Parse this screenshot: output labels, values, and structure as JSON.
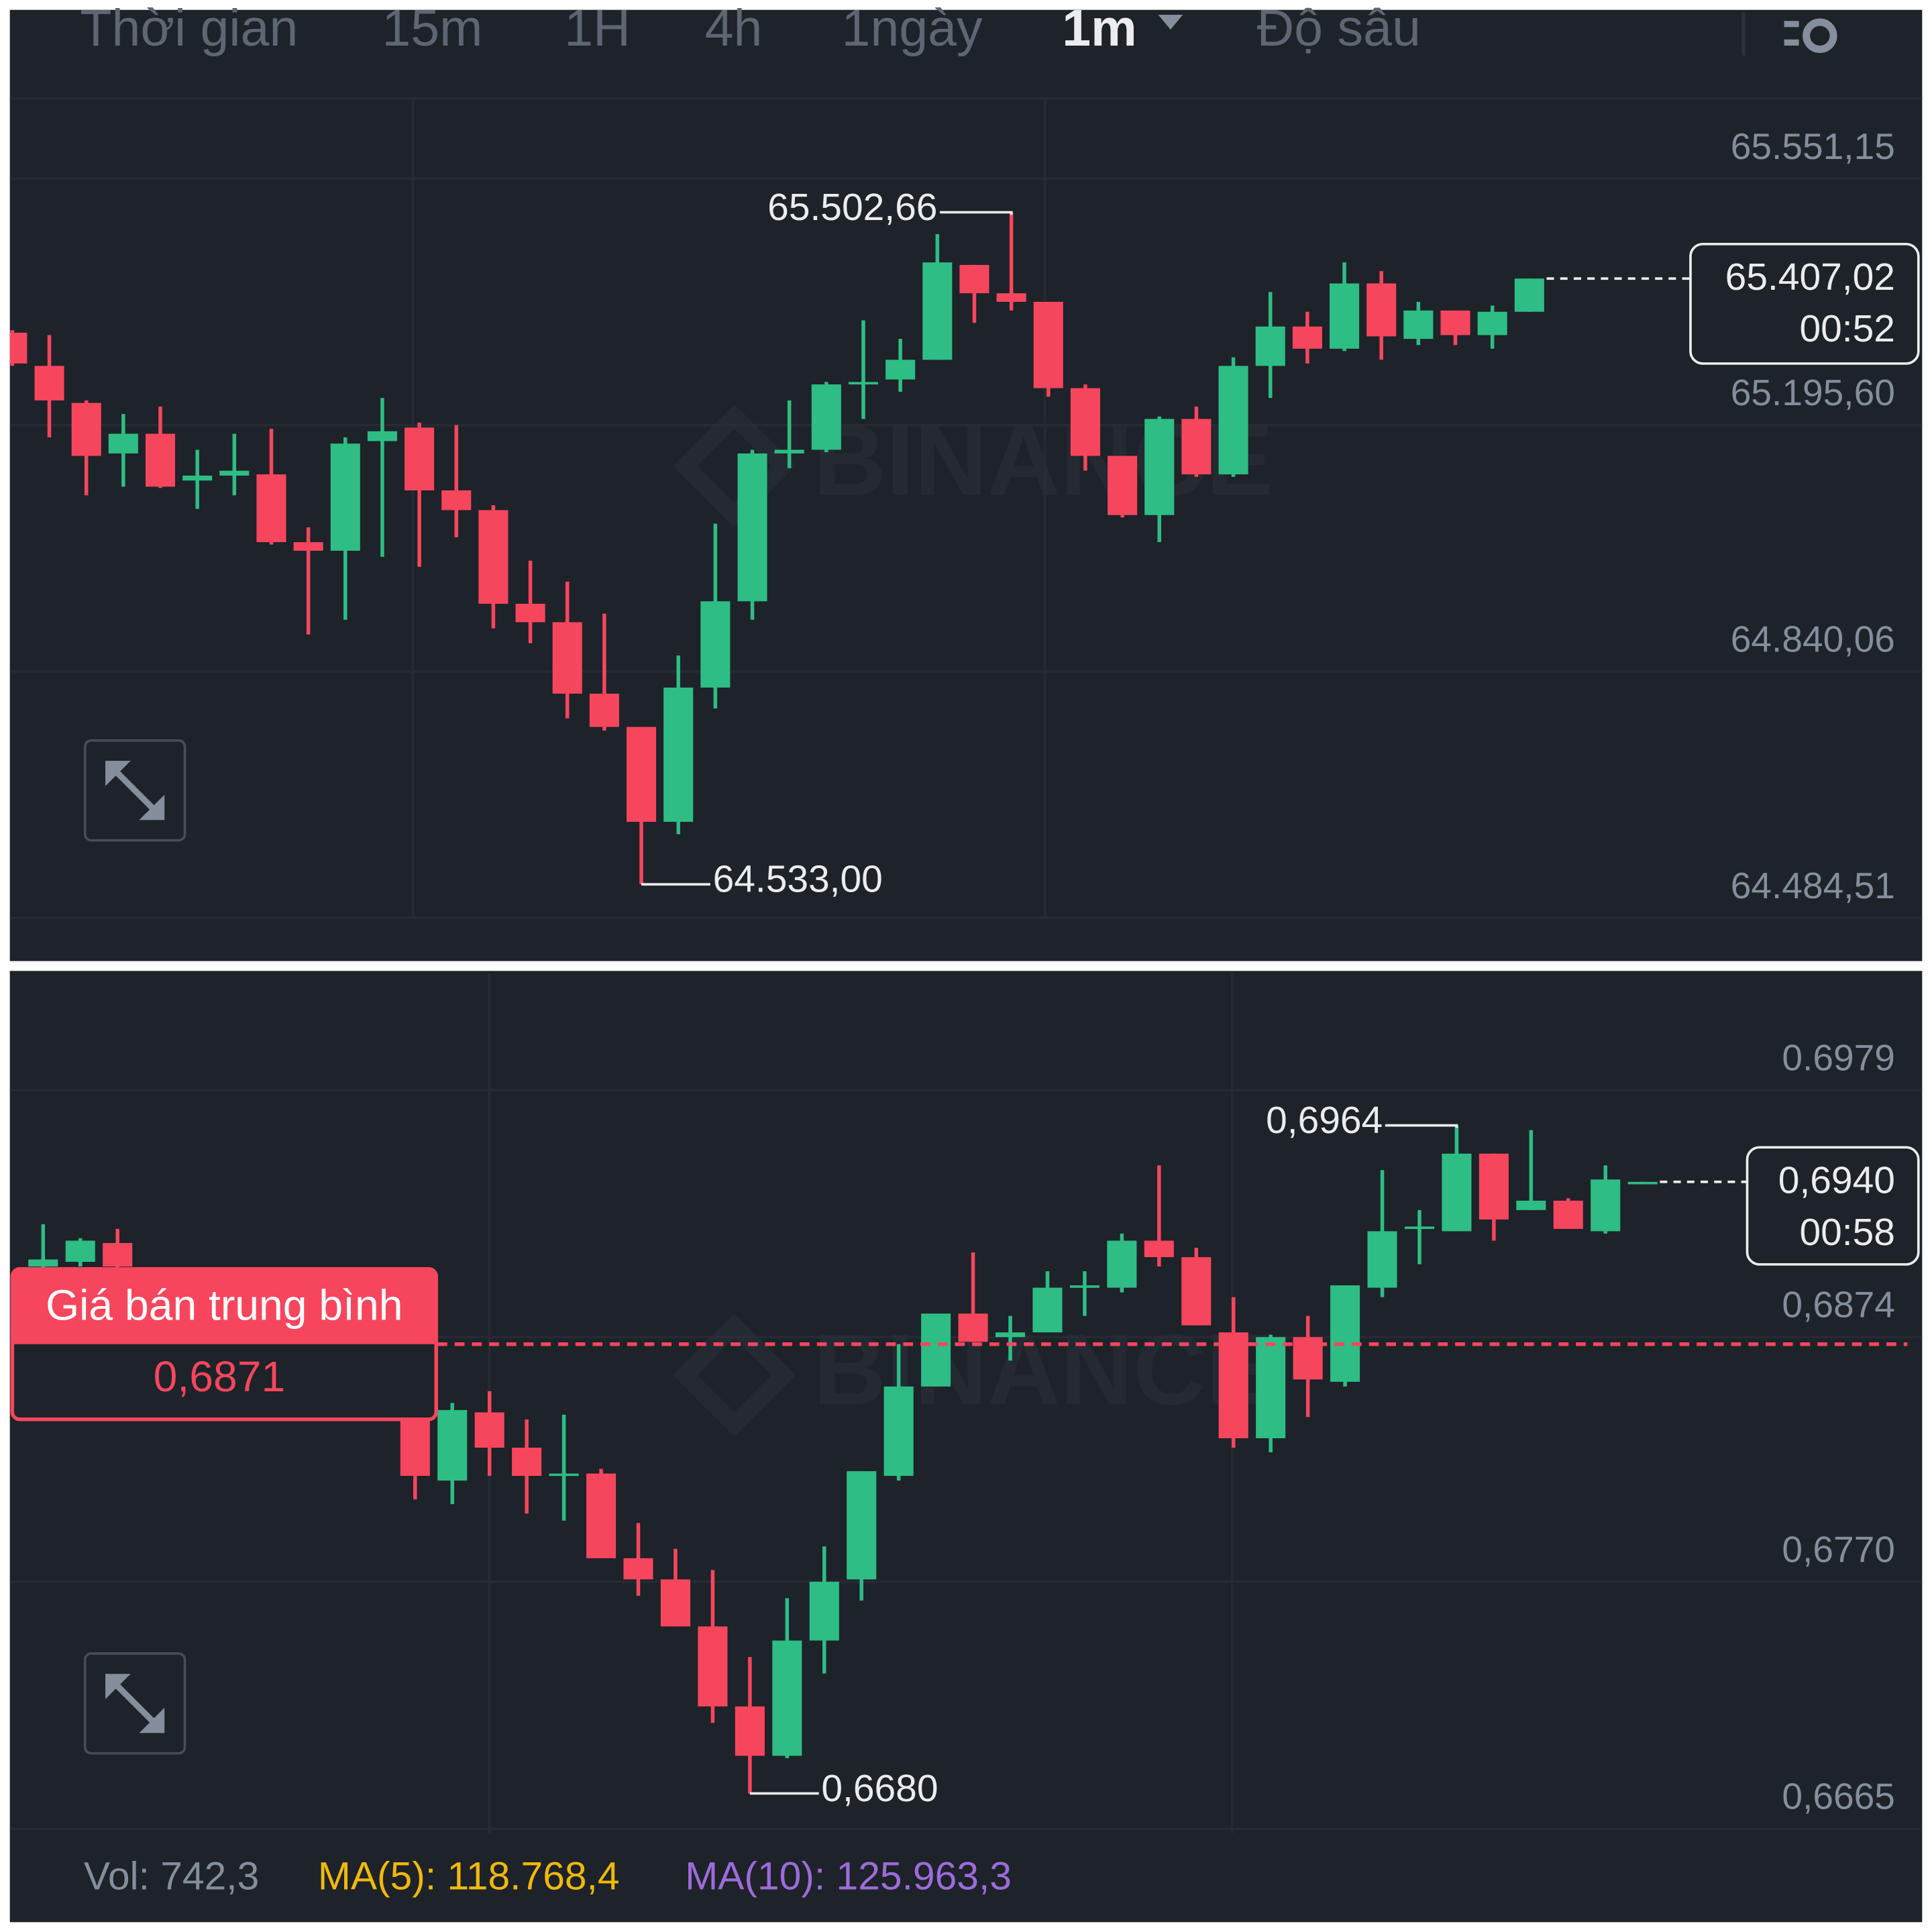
{
  "toolbar": {
    "tabs": [
      "Thời gian",
      "15m",
      "1H",
      "4h",
      "1ngày",
      "1m",
      "Độ sâu"
    ]
  },
  "chart_data": [
    {
      "type": "candlestick",
      "watermark": "BINANCE",
      "up_color": "#2ebd85",
      "down_color": "#f6465d",
      "grid": true,
      "ylim": [
        64484.51,
        65657.8
      ],
      "yticks": [
        {
          "value": 65551.15,
          "label": "65.551,15"
        },
        {
          "value": 65195.6,
          "label": "65.195,60"
        },
        {
          "value": 64840.06,
          "label": "64.840,06"
        },
        {
          "value": 64484.51,
          "label": "64.484,51"
        }
      ],
      "series": {
        "open": [
          65328.9,
          65281.0,
          65227.6,
          65154.7,
          65183.1,
          65115.6,
          65122.7,
          65124.5,
          65026.7,
          65014.3,
          65172.5,
          65192.0,
          65101.4,
          65072.9,
          64937.8,
          64911.2,
          64808.1,
          64760.1,
          64623.2,
          64816.9,
          64941.4,
          65154.7,
          65160.0,
          65254.3,
          65261.4,
          65289.8,
          65426.7,
          65385.8,
          65373.4,
          65248.9,
          65151.2,
          65065.8,
          65204.5,
          65124.5,
          65281.0,
          65337.8,
          65305.8,
          65400.0,
          65320.0,
          65360.9,
          65325.4,
          65359.1
        ],
        "high": [
          65332.5,
          65325.4,
          65231.2,
          65211.6,
          65222.3,
          65160.0,
          65183.1,
          65190.3,
          65048.0,
          65177.8,
          65234.7,
          65199.1,
          65195.6,
          65080.0,
          65000.0,
          64969.8,
          64923.6,
          64760.1,
          64863.2,
          65053.4,
          65160.0,
          65231.2,
          65257.8,
          65346.7,
          65320.0,
          65471.1,
          65426.7,
          65502.66,
          65373.4,
          65254.3,
          65151.2,
          65208.0,
          65222.3,
          65293.4,
          65387.6,
          65359.1,
          65430.3,
          65417.8,
          65373.4,
          65360.9,
          65368.0,
          65407.02
        ],
        "low": [
          65281.0,
          65177.8,
          65094.3,
          65106.7,
          65104.9,
          65074.7,
          65094.3,
          65023.2,
          64893.4,
          64914.7,
          65005.4,
          64991.2,
          65033.8,
          64902.3,
          64880.9,
          64772.5,
          64754.8,
          64533.0,
          64605.4,
          64786.7,
          64914.7,
          65133.4,
          65156.5,
          65204.5,
          65243.6,
          65289.8,
          65343.1,
          65360.9,
          65236.5,
          65129.8,
          65062.3,
          65026.7,
          65120.9,
          65120.9,
          65234.7,
          65284.5,
          65302.3,
          65289.8,
          65311.1,
          65311.1,
          65305.8,
          65359.1
        ],
        "close": [
          65284.5,
          65231.2,
          65151.2,
          65183.1,
          65106.7,
          65122.7,
          65129.8,
          65026.7,
          65014.3,
          65168.9,
          65186.7,
          65101.4,
          65072.9,
          64937.8,
          64911.2,
          64808.1,
          64760.1,
          64623.2,
          64816.9,
          64941.4,
          65154.7,
          65160.0,
          65254.3,
          65257.8,
          65289.8,
          65430.3,
          65385.8,
          65373.4,
          65248.9,
          65151.2,
          65065.8,
          65204.5,
          65124.5,
          65281.0,
          65337.8,
          65305.8,
          65400.0,
          65323.6,
          65360.9,
          65325.4,
          65359.1,
          65407.02
        ]
      },
      "high_label": {
        "value": 65502.66,
        "label": "65.502,66"
      },
      "low_label": {
        "value": 64533.0,
        "label": "64.533,00"
      },
      "current_price": {
        "value": 65407.02,
        "label": "65.407,02"
      },
      "countdown": "00:52"
    },
    {
      "type": "candlestick",
      "watermark": "BINANCE",
      "up_color": "#2ebd85",
      "down_color": "#f6465d",
      "grid": true,
      "ylim": [
        0.6663,
        0.7026
      ],
      "yticks": [
        0.6979,
        {
          "value": 0.6874,
          "label": "0,6874"
        },
        {
          "value": 0.677,
          "label": "0,6770"
        },
        {
          "value": 0.6665,
          "label": "0,6665"
        }
      ],
      "series": {
        "open": [
          0.6904,
          0.6906,
          0.6914,
          null,
          null,
          null,
          null,
          null,
          null,
          null,
          0.684,
          0.6813,
          0.6842,
          0.6827,
          0.6815,
          0.6816,
          0.678,
          0.6771,
          0.6751,
          0.6717,
          0.6696,
          0.6745,
          0.6771,
          0.6815,
          0.6853,
          0.6884,
          0.6874,
          0.6876,
          0.6895,
          0.6895,
          0.6915,
          0.6908,
          0.6876,
          0.6831,
          0.6874,
          0.6855,
          0.6895,
          0.692,
          0.6919,
          0.6952,
          0.6928,
          0.6932,
          0.6919,
          0.6939
        ],
        "high": [
          0.6922,
          0.6916,
          0.692,
          null,
          null,
          null,
          null,
          null,
          null,
          null,
          0.6846,
          0.6846,
          0.6851,
          0.6839,
          0.6841,
          0.6818,
          0.6795,
          0.6784,
          0.6775,
          0.6738,
          0.6763,
          0.6785,
          0.6817,
          0.6871,
          0.6884,
          0.691,
          0.6883,
          0.6902,
          0.6902,
          0.6918,
          0.6947,
          0.6912,
          0.6891,
          0.6875,
          0.6883,
          0.6896,
          0.6945,
          0.6928,
          0.6964,
          0.6952,
          0.6962,
          0.6933,
          0.6947,
          0.694
        ],
        "low": [
          0.6903,
          0.6904,
          0.6903,
          null,
          null,
          null,
          null,
          null,
          null,
          null,
          0.6805,
          0.6803,
          0.6815,
          0.6799,
          0.6796,
          0.678,
          0.6764,
          0.6751,
          0.671,
          0.668,
          0.6695,
          0.6731,
          0.6762,
          0.6813,
          0.6853,
          0.6872,
          0.6864,
          0.6876,
          0.6883,
          0.6893,
          0.6904,
          0.6879,
          0.6827,
          0.6825,
          0.684,
          0.6853,
          0.6891,
          0.6905,
          0.6919,
          0.6915,
          0.6928,
          0.692,
          0.6918,
          0.6939
        ],
        "close": [
          0.6907,
          0.6915,
          0.6904,
          null,
          null,
          null,
          null,
          null,
          null,
          null,
          0.6815,
          0.6843,
          0.6827,
          0.6815,
          0.6816,
          0.678,
          0.6771,
          0.6751,
          0.6717,
          0.6696,
          0.6745,
          0.677,
          0.6817,
          0.6853,
          0.6884,
          0.6872,
          0.6876,
          0.6895,
          0.6896,
          0.6915,
          0.6908,
          0.6879,
          0.6831,
          0.6874,
          0.6856,
          0.6896,
          0.6919,
          0.6921,
          0.6952,
          0.6924,
          0.6932,
          0.692,
          0.6941,
          0.694
        ]
      },
      "high_label": {
        "value": 0.6964,
        "label": "0,6964"
      },
      "low_label": {
        "value": 0.668,
        "label": "0,6680"
      },
      "current_price": {
        "value": 0.694,
        "label": "0,6940"
      },
      "countdown": "00:58",
      "avg_price_title": "Giá bán trung bình",
      "avg_price": {
        "value": 0.6871,
        "label": "0,6871"
      },
      "volume": {
        "vol": "Vol: 742,3",
        "ma5": "MA(5): 118.768,4",
        "ma10": "MA(10): 125.963,3"
      }
    }
  ]
}
